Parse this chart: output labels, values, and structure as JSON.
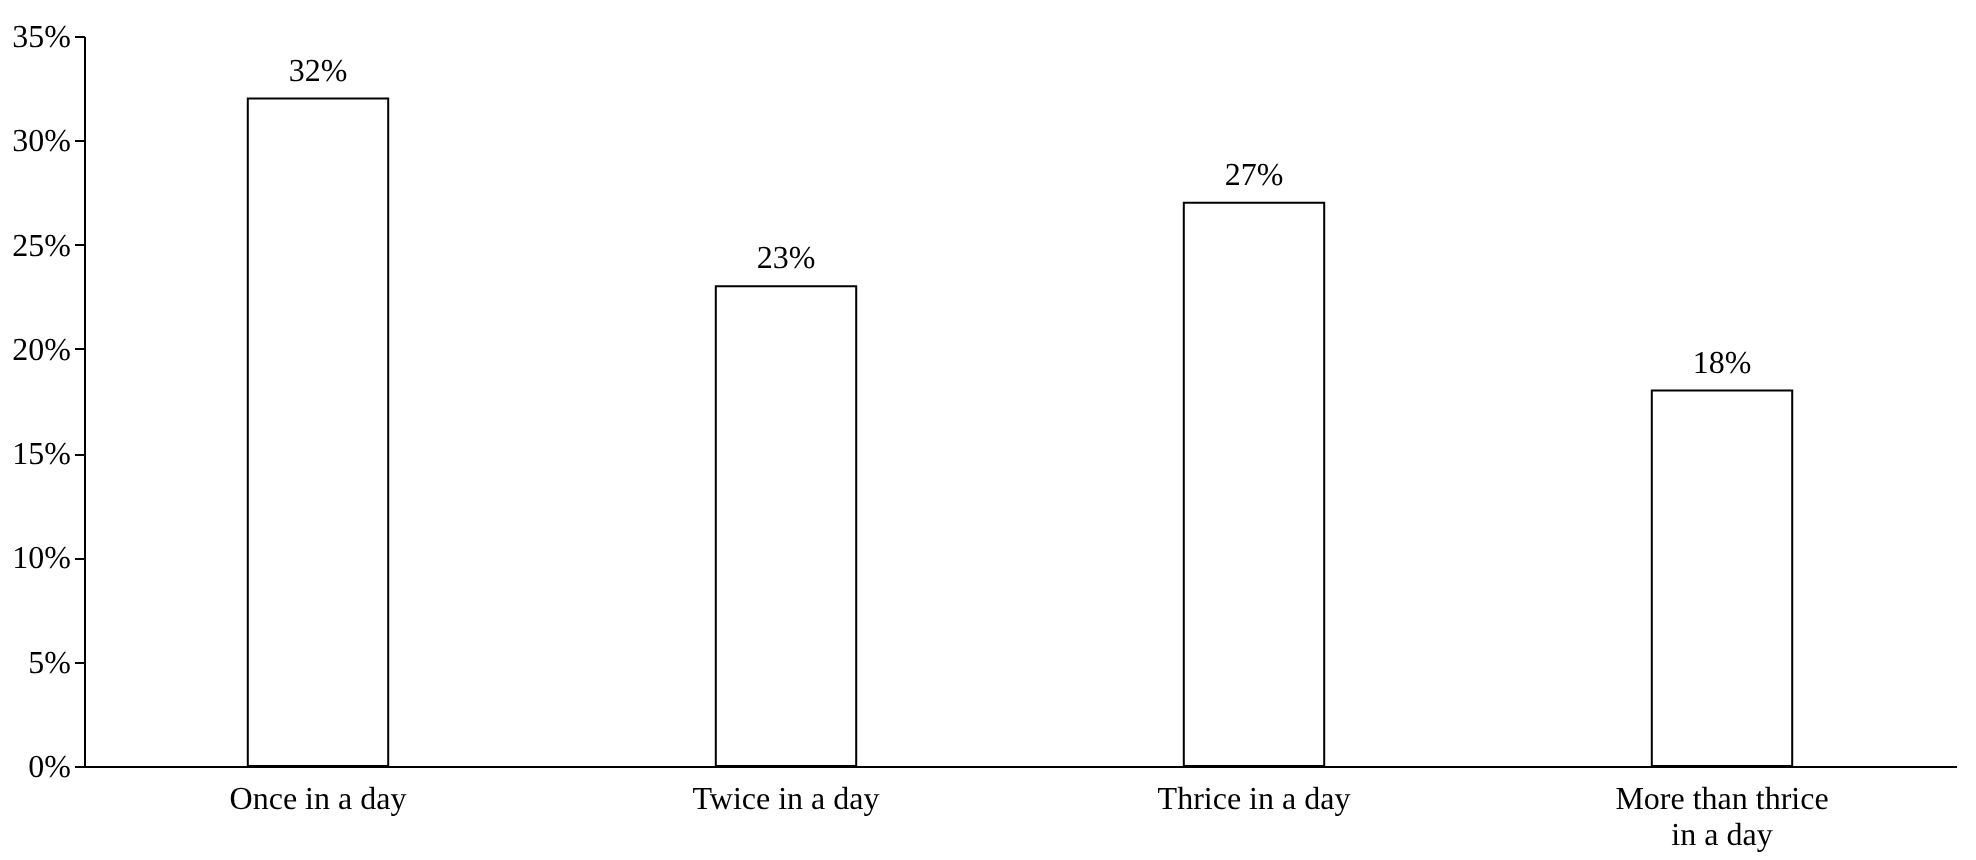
{
  "chart_data": {
    "type": "bar",
    "categories": [
      "Once in a day",
      "Twice in a day",
      "Thrice in a day",
      "More than thrice in a day"
    ],
    "values": [
      32,
      23,
      27,
      18
    ],
    "value_labels": [
      "32%",
      "23%",
      "27%",
      "18%"
    ],
    "color": "#ffffff",
    "ylim": [
      0,
      35
    ],
    "yticks": [
      {
        "value": 0,
        "label": "0%"
      },
      {
        "value": 5,
        "label": "5%"
      },
      {
        "value": 10,
        "label": "10%"
      },
      {
        "value": 15,
        "label": "15%"
      },
      {
        "value": 20,
        "label": "20%"
      },
      {
        "value": 25,
        "label": "25%"
      },
      {
        "value": 30,
        "label": "30%"
      },
      {
        "value": 35,
        "label": "35%"
      }
    ],
    "grid": false
  }
}
